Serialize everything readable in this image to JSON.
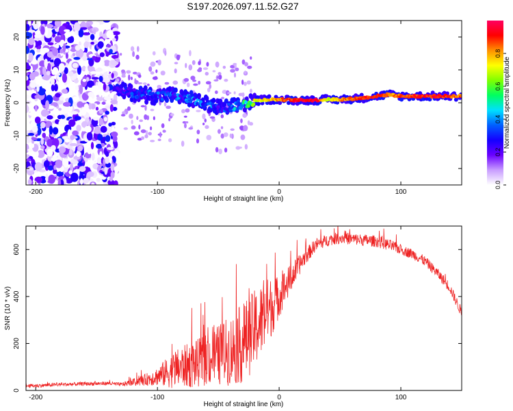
{
  "title": "S197.2026.097.11.52.G27",
  "chart_data": [
    {
      "type": "heatmap",
      "name": "spectrogram",
      "xlabel": "Height of straight line (km)",
      "ylabel": "Frequency (Hz)",
      "xlim": [
        -208,
        150
      ],
      "ylim": [
        -25,
        25
      ],
      "xticks": [
        -200,
        -100,
        0,
        100
      ],
      "yticks": [
        -20,
        -10,
        0,
        10,
        20
      ],
      "colorbar": {
        "label": "Normalized spectral amplitude",
        "range": [
          0,
          1
        ],
        "ticks": [
          "0.0",
          "0.2",
          "0.4",
          "0.6",
          "0.8"
        ],
        "colors": [
          "#ffffff",
          "#c89cff",
          "#6a00ff",
          "#1500ff",
          "#0060ff",
          "#00e0ff",
          "#00ff60",
          "#80ff00",
          "#ffff00",
          "#ff9000",
          "#ff0000",
          "#ff0060"
        ]
      },
      "ridge": {
        "x": [
          -130,
          -120,
          -110,
          -100,
          -90,
          -80,
          -70,
          -60,
          -50,
          -40,
          -30,
          -20,
          -10,
          0,
          10,
          20,
          30,
          40,
          50,
          60,
          70,
          80,
          90,
          100,
          110,
          120,
          130,
          140,
          150
        ],
        "freq": [
          3.5,
          3.0,
          2.5,
          2.0,
          2.5,
          1.5,
          1.0,
          -0.5,
          -1.5,
          -1.5,
          -0.5,
          0.5,
          1.0,
          1.0,
          0.8,
          0.8,
          0.8,
          1.0,
          1.0,
          1.2,
          1.5,
          2.0,
          2.5,
          2.0,
          2.0,
          2.0,
          2.0,
          2.0,
          2.0
        ],
        "amplitude": [
          0.2,
          0.25,
          0.3,
          0.3,
          0.3,
          0.3,
          0.35,
          0.35,
          0.3,
          0.35,
          0.45,
          0.7,
          0.75,
          0.8,
          0.9,
          0.95,
          0.95,
          0.7,
          0.8,
          0.85,
          0.9,
          0.9,
          0.8,
          0.85,
          0.9,
          0.9,
          0.9,
          0.85,
          0.85
        ]
      }
    },
    {
      "type": "line",
      "name": "snr",
      "xlabel": "Height of straight line (km)",
      "ylabel": "SNR (10 * v/v)",
      "xlim": [
        -208,
        150
      ],
      "ylim": [
        0,
        700
      ],
      "xticks": [
        -200,
        -100,
        0,
        100
      ],
      "yticks": [
        0,
        200,
        400,
        600
      ],
      "color": "#ee2222",
      "series": [
        {
          "name": "SNR",
          "x": [
            -208,
            -200,
            -180,
            -160,
            -140,
            -130,
            -120,
            -110,
            -100,
            -90,
            -80,
            -70,
            -60,
            -50,
            -40,
            -30,
            -20,
            -10,
            0,
            10,
            20,
            30,
            40,
            50,
            60,
            70,
            80,
            90,
            100,
            110,
            120,
            130,
            140,
            150
          ],
          "y": [
            20,
            20,
            25,
            28,
            30,
            25,
            35,
            45,
            60,
            80,
            100,
            110,
            130,
            150,
            170,
            200,
            260,
            330,
            400,
            480,
            560,
            620,
            640,
            650,
            645,
            640,
            635,
            620,
            600,
            580,
            550,
            500,
            440,
            330
          ],
          "noise": [
            8,
            8,
            8,
            8,
            8,
            8,
            15,
            25,
            40,
            70,
            90,
            100,
            110,
            130,
            150,
            170,
            170,
            150,
            90,
            60,
            35,
            28,
            25,
            25,
            25,
            25,
            25,
            25,
            22,
            22,
            22,
            22,
            22,
            22
          ]
        }
      ]
    }
  ]
}
